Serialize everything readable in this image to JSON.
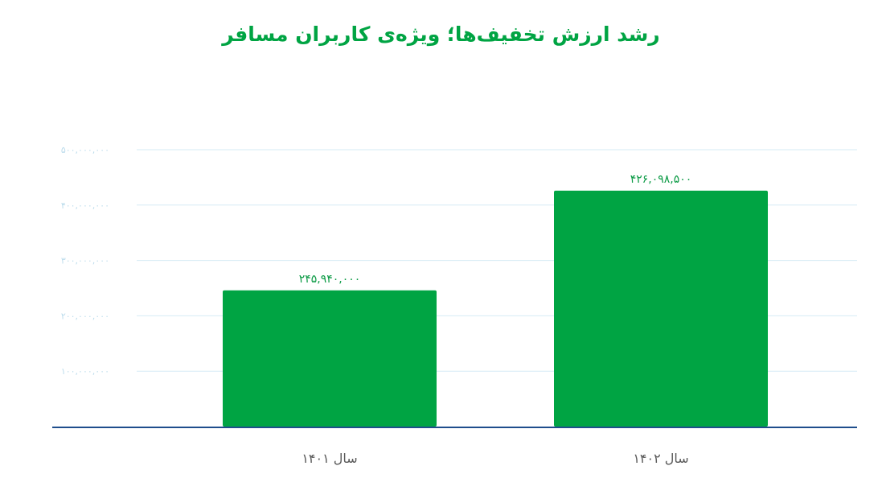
{
  "chart_data": {
    "type": "bar",
    "title": "رشد ارزش تخفیف‌ها؛ ویژه‌ی کاربران مسافر",
    "categories": [
      "سال ۱۴۰۱",
      "سال ۱۴۰۲"
    ],
    "values": [
      245940000,
      426098500
    ],
    "value_labels": [
      "۲۴۵,۹۴۰,۰۰۰",
      "۴۲۶,۰۹۸,۵۰۰"
    ],
    "y_ticks": [
      {
        "value": 100000000,
        "label": "۱۰۰,۰۰۰,۰۰۰"
      },
      {
        "value": 200000000,
        "label": "۲۰۰,۰۰۰,۰۰۰"
      },
      {
        "value": 300000000,
        "label": "۳۰۰,۰۰۰,۰۰۰"
      },
      {
        "value": 400000000,
        "label": "۴۰۰,۰۰۰,۰۰۰"
      },
      {
        "value": 500000000,
        "label": "۵۰۰,۰۰۰,۰۰۰"
      }
    ],
    "ylim": [
      0,
      500000000
    ],
    "grid": true,
    "colors": {
      "bar": "#00a443",
      "title": "#00a443",
      "grid": "#d6ebf5",
      "baseline": "#1f4e8c",
      "tick_label": "#bcdcec",
      "category_label": "#5a5a5a"
    }
  }
}
